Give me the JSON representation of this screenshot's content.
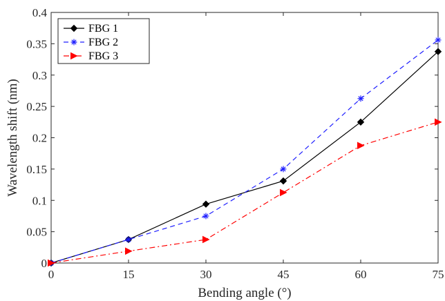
{
  "chart_data": {
    "type": "line",
    "title": "",
    "xlabel": "Bending angle (°)",
    "ylabel": "Wavelength shift (nm)",
    "x": [
      0,
      15,
      30,
      45,
      60,
      75
    ],
    "xlim": [
      0,
      75
    ],
    "ylim": [
      0,
      0.4
    ],
    "xticks": [
      0,
      15,
      30,
      45,
      60,
      75
    ],
    "xtick_labels": [
      "0",
      "15",
      "30",
      "45",
      "60",
      "75"
    ],
    "yticks": [
      0,
      0.05,
      0.1,
      0.15,
      0.2,
      0.25,
      0.3,
      0.35,
      0.4
    ],
    "ytick_labels": [
      "0",
      "0.05",
      "0.1",
      "0.15",
      "0.2",
      "0.25",
      "0.3",
      "0.35",
      "0.4"
    ],
    "grid": false,
    "legend_position": "top-left",
    "series": [
      {
        "name": "FBG 1",
        "values": [
          0,
          0.0375,
          0.094,
          0.131,
          0.225,
          0.3375
        ],
        "color": "#000000",
        "line_style": "solid",
        "marker": "diamond"
      },
      {
        "name": "FBG 2",
        "values": [
          0,
          0.0375,
          0.075,
          0.15,
          0.2625,
          0.356
        ],
        "color": "#1f1fff",
        "line_style": "dashed",
        "marker": "asterisk"
      },
      {
        "name": "FBG 3",
        "values": [
          0,
          0.019,
          0.0375,
          0.1125,
          0.1875,
          0.225
        ],
        "color": "#ff0000",
        "line_style": "dash-dot",
        "marker": "triangle-right"
      }
    ]
  }
}
